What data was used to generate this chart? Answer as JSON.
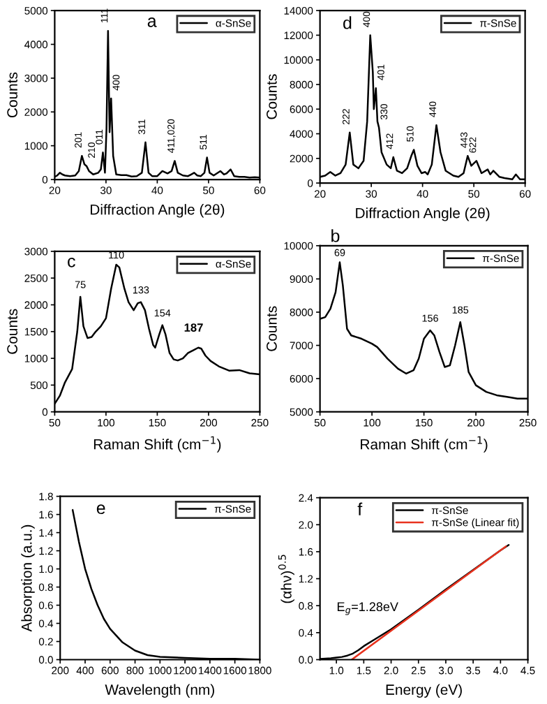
{
  "chart_data": [
    {
      "type": "line",
      "title": "a",
      "xlabel": "Diffraction Angle (2θ)",
      "ylabel": "Counts",
      "xlim": [
        20,
        60
      ],
      "xticks": [
        20,
        30,
        40,
        50,
        60
      ],
      "ylim": [
        0,
        5000
      ],
      "yticks": [
        0,
        1000,
        2000,
        3000,
        4000,
        5000
      ],
      "legend": "top right",
      "grid": false,
      "marker": "none",
      "line_style": "solid",
      "series": [
        {
          "name": "α-SnSe",
          "color": "#000000",
          "x": [
            20,
            20.5,
            21,
            21.5,
            22,
            22.5,
            23,
            24,
            24.7,
            25.3,
            25.8,
            26.2,
            26.7,
            27.5,
            28.5,
            29,
            29.4,
            29.8,
            30.1,
            30.4,
            30.7,
            31,
            31.4,
            32,
            33,
            34,
            35,
            36,
            37,
            37.7,
            38.3,
            39,
            40,
            41,
            42,
            42.8,
            43.4,
            44,
            45,
            46,
            46.6,
            47.2,
            47.8,
            48.5,
            49.2,
            49.7,
            50.2,
            51,
            52.3,
            53,
            53.5,
            54.3,
            55,
            56,
            57,
            58,
            59,
            60
          ],
          "values": [
            80,
            120,
            200,
            150,
            120,
            110,
            100,
            120,
            250,
            700,
            450,
            400,
            250,
            150,
            200,
            300,
            800,
            200,
            1500,
            4400,
            1400,
            2400,
            700,
            150,
            130,
            130,
            90,
            100,
            200,
            1100,
            200,
            100,
            100,
            250,
            180,
            250,
            550,
            200,
            120,
            100,
            150,
            200,
            120,
            100,
            200,
            650,
            200,
            120,
            250,
            150,
            180,
            300,
            100,
            80,
            80,
            60,
            70,
            60
          ]
        }
      ],
      "annotations": [
        {
          "text": "201",
          "x": 25.3,
          "y": 700
        },
        {
          "text": "210",
          "x": 26.2,
          "y": 400
        },
        {
          "text": "011",
          "x": 29.4,
          "y": 800
        },
        {
          "text": "111",
          "x": 30.4,
          "y": 4400
        },
        {
          "text": "400",
          "x": 31,
          "y": 2400
        },
        {
          "text": "311",
          "x": 37.7,
          "y": 1100
        },
        {
          "text": "411,020",
          "x": 43.4,
          "y": 550
        },
        {
          "text": "511",
          "x": 49.7,
          "y": 650
        }
      ]
    },
    {
      "type": "line",
      "title": "d",
      "xlabel": "Diffraction Angle (2θ)",
      "ylabel": "Counts",
      "xlim": [
        20,
        60
      ],
      "xticks": [
        20,
        30,
        40,
        50,
        60
      ],
      "ylim": [
        0,
        14000
      ],
      "yticks": [
        0,
        2000,
        4000,
        6000,
        8000,
        10000,
        12000,
        14000
      ],
      "legend": "top right",
      "grid": false,
      "marker": "none",
      "line_style": "solid",
      "series": [
        {
          "name": "π-SnSe",
          "color": "#000000",
          "x": [
            20,
            21,
            22,
            23,
            24,
            25,
            25.8,
            26.5,
            27.5,
            28.5,
            29.2,
            29.8,
            30.3,
            30.5,
            30.9,
            31.2,
            31.5,
            32,
            33,
            33.8,
            34.3,
            35,
            36,
            37,
            37.8,
            38.3,
            39,
            39.8,
            40.5,
            41,
            41.8,
            42.7,
            43.5,
            44.5,
            46,
            47,
            48,
            48.8,
            49.5,
            50.5,
            51.5,
            52.7,
            53.2,
            53.8,
            55,
            56,
            57.5,
            58.2,
            59,
            60
          ],
          "values": [
            500,
            600,
            900,
            600,
            800,
            1500,
            4100,
            1500,
            1200,
            1800,
            5000,
            12000,
            9000,
            6000,
            7700,
            5000,
            4500,
            2500,
            1500,
            1200,
            2100,
            1000,
            800,
            1200,
            2200,
            2700,
            1400,
            800,
            900,
            700,
            1500,
            4700,
            2500,
            1000,
            600,
            500,
            800,
            2200,
            1400,
            1800,
            800,
            1100,
            700,
            1000,
            500,
            400,
            300,
            700,
            300,
            300
          ]
        }
      ],
      "annotations": [
        {
          "text": "222",
          "x": 25.8,
          "y": 4100
        },
        {
          "text": "400",
          "x": 29.8,
          "y": 12000
        },
        {
          "text": "401",
          "x": 30.9,
          "y": 7700
        },
        {
          "text": "330",
          "x": 31.5,
          "y": 4500
        },
        {
          "text": "412",
          "x": 34.3,
          "y": 2100
        },
        {
          "text": "510",
          "x": 38.3,
          "y": 2700
        },
        {
          "text": "440",
          "x": 42.7,
          "y": 4700
        },
        {
          "text": "443",
          "x": 48.8,
          "y": 2200
        },
        {
          "text": "622",
          "x": 50.5,
          "y": 1800
        }
      ]
    },
    {
      "type": "line",
      "title": "c",
      "xlabel": "Raman Shift (cm$^{−1}$)",
      "ylabel": "Counts",
      "xlim": [
        50,
        250
      ],
      "xticks": [
        50,
        100,
        150,
        200,
        250
      ],
      "ylim": [
        0,
        3000
      ],
      "yticks": [
        0,
        500,
        1000,
        1500,
        2000,
        2500,
        3000
      ],
      "legend": "top right",
      "grid": false,
      "marker": "none",
      "line_style": "solid",
      "series": [
        {
          "name": "α-SnSe",
          "color": "#000000",
          "x": [
            50,
            55,
            60,
            67,
            72,
            75,
            78,
            82,
            86,
            90,
            95,
            100,
            105,
            110,
            113,
            118,
            122,
            127,
            131,
            134,
            138,
            142,
            146,
            148,
            152,
            155,
            158,
            162,
            166,
            170,
            175,
            180,
            185,
            190,
            193,
            197,
            202,
            210,
            220,
            230,
            240,
            250
          ],
          "values": [
            150,
            300,
            550,
            800,
            1500,
            2150,
            1600,
            1380,
            1400,
            1500,
            1600,
            1750,
            2300,
            2750,
            2700,
            2300,
            2050,
            1900,
            2030,
            2050,
            1900,
            1550,
            1250,
            1200,
            1450,
            1620,
            1450,
            1100,
            980,
            960,
            1000,
            1100,
            1150,
            1200,
            1180,
            1050,
            950,
            850,
            770,
            780,
            720,
            700
          ]
        }
      ],
      "annotations": [
        {
          "text": "75",
          "x": 75,
          "y": 2150
        },
        {
          "text": "110",
          "x": 110,
          "y": 2750
        },
        {
          "text": "133",
          "x": 134,
          "y": 2050
        },
        {
          "text": "154",
          "x": 155,
          "y": 1620
        },
        "187"
      ]
    },
    {
      "type": "line",
      "title": "b",
      "xlabel": "Raman Shift (cm$^{−1}$)",
      "ylabel": "Counts",
      "xlim": [
        50,
        250
      ],
      "xticks": [
        50,
        100,
        150,
        200,
        250
      ],
      "ylim": [
        5000,
        10000
      ],
      "yticks": [
        5000,
        6000,
        7000,
        8000,
        9000,
        10000
      ],
      "legend": "top right",
      "grid": false,
      "marker": "none",
      "line_style": "solid",
      "series": [
        {
          "name": "π-SnSe",
          "color": "#000000",
          "x": [
            50,
            55,
            60,
            65,
            69,
            72,
            76,
            80,
            90,
            100,
            105,
            115,
            125,
            133,
            140,
            145,
            150,
            156,
            160,
            165,
            170,
            175,
            180,
            185,
            189,
            193,
            200,
            210,
            220,
            230,
            240,
            250
          ],
          "values": [
            7800,
            7850,
            8100,
            8600,
            9500,
            8800,
            7500,
            7300,
            7200,
            7050,
            6950,
            6600,
            6300,
            6150,
            6250,
            6600,
            7200,
            7450,
            7300,
            6800,
            6350,
            6400,
            7000,
            7700,
            7000,
            6200,
            5800,
            5600,
            5500,
            5450,
            5400,
            5400
          ]
        }
      ],
      "annotations": [
        {
          "text": "69",
          "x": 69,
          "y": 9500
        },
        {
          "text": "156",
          "x": 156,
          "y": 7450
        },
        {
          "text": "185",
          "x": 185,
          "y": 7700
        }
      ]
    },
    {
      "type": "line",
      "title": "e",
      "xlabel": "Wavelength (nm)",
      "ylabel": "Absorption (a.u.)",
      "xlim": [
        200,
        1800
      ],
      "xticks": [
        200,
        400,
        600,
        800,
        1000,
        1200,
        1400,
        1600,
        1800
      ],
      "ylim": [
        0,
        1.8
      ],
      "yticks": [
        {
          "value": 0,
          "label": "0.0"
        },
        0.2,
        0.4,
        0.6,
        0.8,
        {
          "value": 1,
          "label": "1.0"
        },
        1.2,
        1.4,
        1.6,
        1.8
      ],
      "legend": "top right",
      "grid": false,
      "marker": "none",
      "line_style": "solid",
      "series": [
        {
          "name": "π-SnSe",
          "color": "#000000",
          "x": [
            300,
            350,
            400,
            450,
            500,
            550,
            600,
            700,
            800,
            900,
            1000,
            1200,
            1400,
            1600,
            1800
          ],
          "values": [
            1.65,
            1.3,
            1.0,
            0.78,
            0.6,
            0.45,
            0.34,
            0.19,
            0.1,
            0.05,
            0.03,
            0.02,
            0.01,
            0.01,
            0.0
          ]
        }
      ]
    },
    {
      "type": "line",
      "title": "f",
      "xlabel": "Energy (eV)",
      "ylabel": "(αhν)$^{0.5}$",
      "xlim": [
        0.7,
        4.5
      ],
      "xticks": [
        {
          "value": 1,
          "label": "1.0"
        },
        1.5,
        {
          "value": 2,
          "label": "2.0"
        },
        2.5,
        {
          "value": 3,
          "label": "3.0"
        },
        3.5,
        {
          "value": 4,
          "label": "4.0"
        },
        4.5
      ],
      "ylim": [
        0,
        2.4
      ],
      "yticks": [
        {
          "value": 0,
          "label": "0.0"
        },
        0.4,
        0.8,
        1.2,
        1.6,
        {
          "value": 2,
          "label": "2.0"
        },
        2.4
      ],
      "legend": "top right",
      "grid": false,
      "marker": "none",
      "line_style": "solid",
      "series": [
        {
          "name": "π-SnSe",
          "color": "#000000",
          "x": [
            0.7,
            0.9,
            1.0,
            1.1,
            1.2,
            1.3,
            1.4,
            1.5,
            1.7,
            2.0,
            2.5,
            3.0,
            3.5,
            4.0,
            4.15
          ],
          "values": [
            0.01,
            0.02,
            0.03,
            0.04,
            0.06,
            0.09,
            0.14,
            0.2,
            0.3,
            0.45,
            0.74,
            1.04,
            1.33,
            1.62,
            1.7
          ]
        },
        {
          "name": "π-SnSe (Linear fit)",
          "color": "#e8321e",
          "x": [
            1.28,
            4.1
          ],
          "values": [
            0,
            1.68
          ]
        }
      ],
      "annotations": [
        "E$_{g}$=1.28eV"
      ]
    }
  ]
}
